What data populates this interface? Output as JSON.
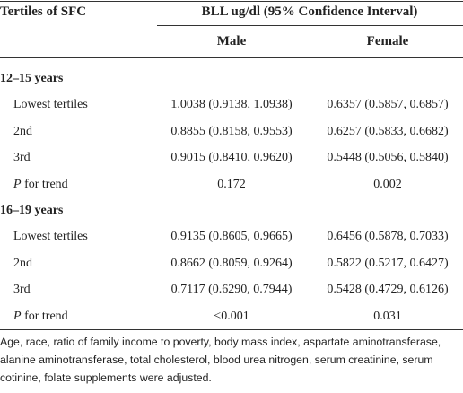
{
  "table": {
    "header": {
      "stub": "Tertiles of SFC",
      "span": "BLL ug/dl (95% Confidence Interval)",
      "columns": [
        "Male",
        "Female"
      ]
    },
    "sections": [
      {
        "label": "12–15 years",
        "rows": [
          [
            "Lowest tertiles",
            "1.0038 (0.9138, 1.0938)",
            "0.6357 (0.5857, 0.6857)"
          ],
          [
            "2nd",
            "0.8855 (0.8158, 0.9553)",
            "0.6257 (0.5833, 0.6682)"
          ],
          [
            "3rd",
            "0.9015 (0.8410, 0.9620)",
            "0.5448 (0.5056, 0.5840)"
          ],
          [
            "P for trend",
            "0.172",
            "0.002"
          ]
        ]
      },
      {
        "label": "16–19 years",
        "rows": [
          [
            "Lowest tertiles",
            "0.9135 (0.8605, 0.9665)",
            "0.6456 (0.5878, 0.7033)"
          ],
          [
            "2nd",
            "0.8662 (0.8059, 0.9264)",
            "0.5822 (0.5217, 0.6427)"
          ],
          [
            "3rd",
            "0.7117 (0.6290, 0.7944)",
            "0.5428 (0.4729, 0.6126)"
          ],
          [
            "P for trend",
            "<0.001",
            "0.031"
          ]
        ]
      }
    ]
  },
  "footnote": "Age, race, ratio of family income to poverty, body mass index, aspartate aminotransferase, alanine aminotransferase, total cholesterol, blood urea nitrogen, serum creatinine, serum cotinine, folate supplements were adjusted."
}
